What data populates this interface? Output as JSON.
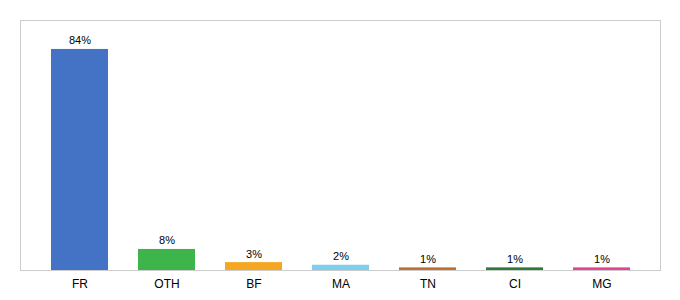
{
  "chart_data": {
    "type": "bar",
    "categories": [
      "FR",
      "OTH",
      "BF",
      "MA",
      "TN",
      "CI",
      "MG"
    ],
    "values": [
      84,
      8,
      3,
      2,
      1,
      1,
      1
    ],
    "value_labels": [
      "84%",
      "8%",
      "3%",
      "2%",
      "1%",
      "1%",
      "1%"
    ],
    "colors": [
      "#4472c4",
      "#3db54a",
      "#f5a623",
      "#7ecfed",
      "#c07030",
      "#2d7a3a",
      "#e84393"
    ],
    "ylim": [
      0,
      95
    ],
    "grid": false,
    "data_labels": true,
    "tick_labels": "x"
  }
}
